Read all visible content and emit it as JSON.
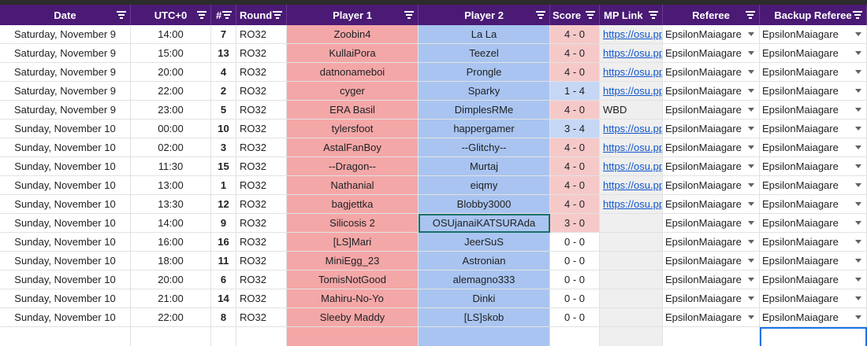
{
  "columns": [
    {
      "label": "Date"
    },
    {
      "label": "UTC+0"
    },
    {
      "label": "#"
    },
    {
      "label": "Round"
    },
    {
      "label": "Player 1"
    },
    {
      "label": "Player 2"
    },
    {
      "label": "Score"
    },
    {
      "label": "MP Link"
    },
    {
      "label": "Referee"
    },
    {
      "label": "Backup Referee"
    }
  ],
  "rows": [
    {
      "date": "Saturday, November 9",
      "time": "14:00",
      "num": "7",
      "round": "RO32",
      "p1": "Zoobin4",
      "p2": "La La",
      "score": "4 - 0",
      "score_color": "red",
      "mp": "https://osu.ppy.sh/mp",
      "mp_is_link": true,
      "referee": "EpsilonMaiagare",
      "backup": "EpsilonMaiagare"
    },
    {
      "date": "Saturday, November 9",
      "time": "15:00",
      "num": "13",
      "round": "RO32",
      "p1": "KullaiPora",
      "p2": "Teezel",
      "score": "4 - 0",
      "score_color": "red",
      "mp": "https://osu.ppy.sh/mp",
      "mp_is_link": true,
      "referee": "EpsilonMaiagare",
      "backup": "EpsilonMaiagare"
    },
    {
      "date": "Saturday, November 9",
      "time": "20:00",
      "num": "4",
      "round": "RO32",
      "p1": "datnonameboi",
      "p2": "Prongle",
      "score": "4 - 0",
      "score_color": "red",
      "mp": "https://osu.ppy.sh/mp",
      "mp_is_link": true,
      "referee": "EpsilonMaiagare",
      "backup": "EpsilonMaiagare"
    },
    {
      "date": "Saturday, November 9",
      "time": "22:00",
      "num": "2",
      "round": "RO32",
      "p1": "cyger",
      "p2": "Sparky",
      "score": "1 - 4",
      "score_color": "blue",
      "mp": "https://osu.ppy.sh/mp",
      "mp_is_link": true,
      "referee": "EpsilonMaiagare",
      "backup": "EpsilonMaiagare"
    },
    {
      "date": "Saturday, November 9",
      "time": "23:00",
      "num": "5",
      "round": "RO32",
      "p1": "ERA Basil",
      "p2": "DimplesRMe",
      "score": "4 - 0",
      "score_color": "red",
      "mp": "WBD",
      "mp_is_link": false,
      "referee": "EpsilonMaiagare",
      "backup": "EpsilonMaiagare"
    },
    {
      "date": "Sunday, November 10",
      "time": "00:00",
      "num": "10",
      "round": "RO32",
      "p1": "tylersfoot",
      "p2": "happergamer",
      "score": "3 - 4",
      "score_color": "blue",
      "mp": "https://osu.ppy.sh/mp",
      "mp_is_link": true,
      "referee": "EpsilonMaiagare",
      "backup": "EpsilonMaiagare"
    },
    {
      "date": "Sunday, November 10",
      "time": "02:00",
      "num": "3",
      "round": "RO32",
      "p1": "AstalFanBoy",
      "p2": "--Glitchy--",
      "score": "4 - 0",
      "score_color": "red",
      "mp": "https://osu.ppy.sh/mp",
      "mp_is_link": true,
      "referee": "EpsilonMaiagare",
      "backup": "EpsilonMaiagare"
    },
    {
      "date": "Sunday, November 10",
      "time": "11:30",
      "num": "15",
      "round": "RO32",
      "p1": "--Dragon--",
      "p2": "Murtaj",
      "score": "4 - 0",
      "score_color": "red",
      "mp": "https://osu.ppy.sh/mp",
      "mp_is_link": true,
      "referee": "EpsilonMaiagare",
      "backup": "EpsilonMaiagare"
    },
    {
      "date": "Sunday, November 10",
      "time": "13:00",
      "num": "1",
      "round": "RO32",
      "p1": "Nathanial",
      "p2": "eiqmy",
      "score": "4 - 0",
      "score_color": "red",
      "mp": "https://osu.ppy.sh/mp",
      "mp_is_link": true,
      "referee": "EpsilonMaiagare",
      "backup": "EpsilonMaiagare"
    },
    {
      "date": "Sunday, November 10",
      "time": "13:30",
      "num": "12",
      "round": "RO32",
      "p1": "bagjettka",
      "p2": "Blobby3000",
      "score": "4 - 0",
      "score_color": "red",
      "mp": "https://osu.ppy.sh/mp",
      "mp_is_link": true,
      "referee": "EpsilonMaiagare",
      "backup": "EpsilonMaiagare"
    },
    {
      "date": "Sunday, November 10",
      "time": "14:00",
      "num": "9",
      "round": "RO32",
      "p1": "Silicosis 2",
      "p2": "OSUjanaiKATSURAda",
      "score": "3 - 0",
      "score_color": "red",
      "mp": "",
      "mp_is_link": false,
      "referee": "EpsilonMaiagare",
      "backup": "EpsilonMaiagare",
      "selected": true
    },
    {
      "date": "Sunday, November 10",
      "time": "16:00",
      "num": "16",
      "round": "RO32",
      "p1": "[LS]Mari",
      "p2": "JeerSuS",
      "score": "0 - 0",
      "score_color": "none",
      "mp": "",
      "mp_is_link": false,
      "referee": "EpsilonMaiagare",
      "backup": "EpsilonMaiagare"
    },
    {
      "date": "Sunday, November 10",
      "time": "18:00",
      "num": "11",
      "round": "RO32",
      "p1": "MiniEgg_23",
      "p2": "Astronian",
      "score": "0 - 0",
      "score_color": "none",
      "mp": "",
      "mp_is_link": false,
      "referee": "EpsilonMaiagare",
      "backup": "EpsilonMaiagare"
    },
    {
      "date": "Sunday, November 10",
      "time": "20:00",
      "num": "6",
      "round": "RO32",
      "p1": "TomisNotGood",
      "p2": "alemagno333",
      "score": "0 - 0",
      "score_color": "none",
      "mp": "",
      "mp_is_link": false,
      "referee": "EpsilonMaiagare",
      "backup": "EpsilonMaiagare"
    },
    {
      "date": "Sunday, November 10",
      "time": "21:00",
      "num": "14",
      "round": "RO32",
      "p1": "Mahiru-No-Yo",
      "p2": "Dinki",
      "score": "0 - 0",
      "score_color": "none",
      "mp": "",
      "mp_is_link": false,
      "referee": "EpsilonMaiagare",
      "backup": "EpsilonMaiagare"
    },
    {
      "date": "Sunday, November 10",
      "time": "22:00",
      "num": "8",
      "round": "RO32",
      "p1": "Sleeby Maddy",
      "p2": "[LS]skob",
      "score": "0 - 0",
      "score_color": "none",
      "mp": "",
      "mp_is_link": false,
      "referee": "EpsilonMaiagare",
      "backup": "EpsilonMaiagare"
    }
  ],
  "colors": {
    "header_bg": "#4a1a75",
    "player1_bg": "#f4a7a7",
    "player2_bg": "#a9c4f0",
    "score_red_bg": "#f6c9c9",
    "score_blue_bg": "#c6d7f6",
    "link": "#1155cc"
  }
}
